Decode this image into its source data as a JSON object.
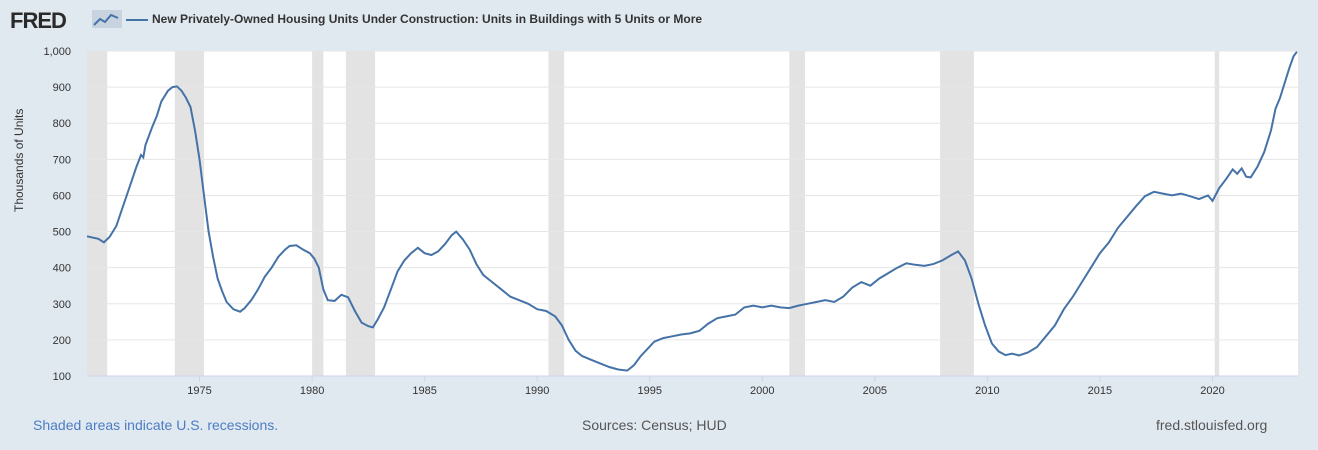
{
  "header": {
    "logo_text": "FRED",
    "title": "New Privately-Owned Housing Units Under Construction: Units in Buildings with 5 Units or More"
  },
  "footer": {
    "recession_note": "Shaded areas indicate U.S. recessions.",
    "sources": "Sources: Census; HUD",
    "site": "fred.stlouisfed.org"
  },
  "colors": {
    "line": "#4572a7",
    "recession": "#e3e3e3",
    "grid": "#e6e6e6",
    "background": "#e1e9f0"
  },
  "chart_data": {
    "type": "line",
    "ylabel": "Thousands of Units",
    "xlim": [
      1970.0,
      2023.8
    ],
    "ylim": [
      100,
      1000
    ],
    "x_ticks": [
      1975,
      1980,
      1985,
      1990,
      1995,
      2000,
      2005,
      2010,
      2015,
      2020
    ],
    "x_tick_labels": [
      "1975",
      "1980",
      "1985",
      "1990",
      "1995",
      "2000",
      "2005",
      "2010",
      "2015",
      "2020"
    ],
    "y_ticks": [
      100,
      200,
      300,
      400,
      500,
      600,
      700,
      800,
      900,
      1000
    ],
    "y_tick_labels": [
      "100",
      "200",
      "300",
      "400",
      "500",
      "600",
      "700",
      "800",
      "900",
      "1,000"
    ],
    "grid": true,
    "recessions": [
      [
        1970.0,
        1970.9
      ],
      [
        1973.9,
        1975.2
      ],
      [
        1980.0,
        1980.5
      ],
      [
        1981.5,
        1982.8
      ],
      [
        1990.5,
        1991.2
      ],
      [
        2001.2,
        2001.9
      ],
      [
        2007.9,
        2009.4
      ],
      [
        2020.1,
        2020.3
      ]
    ],
    "series": [
      {
        "points": [
          [
            1970.0,
            487
          ],
          [
            1970.5,
            480
          ],
          [
            1970.75,
            470
          ],
          [
            1971.0,
            485
          ],
          [
            1971.3,
            515
          ],
          [
            1971.6,
            570
          ],
          [
            1971.9,
            625
          ],
          [
            1972.2,
            680
          ],
          [
            1972.4,
            712
          ],
          [
            1972.5,
            705
          ],
          [
            1972.6,
            740
          ],
          [
            1972.9,
            790
          ],
          [
            1973.1,
            820
          ],
          [
            1973.3,
            860
          ],
          [
            1973.6,
            890
          ],
          [
            1973.8,
            900
          ],
          [
            1974.0,
            902
          ],
          [
            1974.2,
            890
          ],
          [
            1974.4,
            870
          ],
          [
            1974.6,
            845
          ],
          [
            1974.8,
            780
          ],
          [
            1975.0,
            700
          ],
          [
            1975.2,
            600
          ],
          [
            1975.4,
            500
          ],
          [
            1975.6,
            430
          ],
          [
            1975.8,
            370
          ],
          [
            1976.0,
            335
          ],
          [
            1976.2,
            305
          ],
          [
            1976.5,
            285
          ],
          [
            1976.8,
            278
          ],
          [
            1977.0,
            288
          ],
          [
            1977.3,
            310
          ],
          [
            1977.6,
            340
          ],
          [
            1977.9,
            375
          ],
          [
            1978.2,
            400
          ],
          [
            1978.5,
            430
          ],
          [
            1978.8,
            450
          ],
          [
            1979.0,
            460
          ],
          [
            1979.3,
            462
          ],
          [
            1979.6,
            450
          ],
          [
            1979.9,
            440
          ],
          [
            1980.1,
            425
          ],
          [
            1980.3,
            400
          ],
          [
            1980.5,
            340
          ],
          [
            1980.7,
            310
          ],
          [
            1981.0,
            308
          ],
          [
            1981.3,
            325
          ],
          [
            1981.6,
            318
          ],
          [
            1981.9,
            280
          ],
          [
            1982.2,
            248
          ],
          [
            1982.5,
            238
          ],
          [
            1982.7,
            235
          ],
          [
            1982.9,
            255
          ],
          [
            1983.2,
            290
          ],
          [
            1983.5,
            340
          ],
          [
            1983.8,
            390
          ],
          [
            1984.1,
            420
          ],
          [
            1984.4,
            440
          ],
          [
            1984.7,
            455
          ],
          [
            1985.0,
            440
          ],
          [
            1985.3,
            435
          ],
          [
            1985.6,
            445
          ],
          [
            1985.9,
            465
          ],
          [
            1986.2,
            490
          ],
          [
            1986.4,
            500
          ],
          [
            1986.7,
            478
          ],
          [
            1987.0,
            450
          ],
          [
            1987.3,
            410
          ],
          [
            1987.6,
            380
          ],
          [
            1988.0,
            360
          ],
          [
            1988.4,
            340
          ],
          [
            1988.8,
            320
          ],
          [
            1989.2,
            310
          ],
          [
            1989.6,
            300
          ],
          [
            1990.0,
            285
          ],
          [
            1990.4,
            280
          ],
          [
            1990.8,
            265
          ],
          [
            1991.1,
            240
          ],
          [
            1991.4,
            200
          ],
          [
            1991.7,
            170
          ],
          [
            1992.0,
            155
          ],
          [
            1992.4,
            145
          ],
          [
            1992.8,
            135
          ],
          [
            1993.2,
            125
          ],
          [
            1993.6,
            118
          ],
          [
            1994.0,
            115
          ],
          [
            1994.3,
            130
          ],
          [
            1994.6,
            155
          ],
          [
            1994.9,
            175
          ],
          [
            1995.2,
            195
          ],
          [
            1995.6,
            205
          ],
          [
            1996.0,
            210
          ],
          [
            1996.4,
            215
          ],
          [
            1996.8,
            218
          ],
          [
            1997.2,
            225
          ],
          [
            1997.6,
            245
          ],
          [
            1998.0,
            260
          ],
          [
            1998.4,
            265
          ],
          [
            1998.8,
            270
          ],
          [
            1999.2,
            290
          ],
          [
            1999.6,
            295
          ],
          [
            2000.0,
            290
          ],
          [
            2000.4,
            295
          ],
          [
            2000.8,
            290
          ],
          [
            2001.2,
            288
          ],
          [
            2001.6,
            295
          ],
          [
            2002.0,
            300
          ],
          [
            2002.4,
            305
          ],
          [
            2002.8,
            310
          ],
          [
            2003.2,
            305
          ],
          [
            2003.6,
            320
          ],
          [
            2004.0,
            345
          ],
          [
            2004.4,
            360
          ],
          [
            2004.8,
            350
          ],
          [
            2005.2,
            370
          ],
          [
            2005.6,
            385
          ],
          [
            2006.0,
            400
          ],
          [
            2006.4,
            412
          ],
          [
            2006.8,
            408
          ],
          [
            2007.2,
            405
          ],
          [
            2007.6,
            410
          ],
          [
            2008.0,
            420
          ],
          [
            2008.4,
            435
          ],
          [
            2008.7,
            445
          ],
          [
            2009.0,
            420
          ],
          [
            2009.3,
            370
          ],
          [
            2009.6,
            300
          ],
          [
            2009.9,
            240
          ],
          [
            2010.2,
            190
          ],
          [
            2010.5,
            168
          ],
          [
            2010.8,
            158
          ],
          [
            2011.1,
            162
          ],
          [
            2011.4,
            157
          ],
          [
            2011.8,
            165
          ],
          [
            2012.2,
            180
          ],
          [
            2012.6,
            210
          ],
          [
            2013.0,
            240
          ],
          [
            2013.4,
            285
          ],
          [
            2013.8,
            320
          ],
          [
            2014.2,
            360
          ],
          [
            2014.6,
            400
          ],
          [
            2015.0,
            440
          ],
          [
            2015.4,
            470
          ],
          [
            2015.8,
            510
          ],
          [
            2016.2,
            540
          ],
          [
            2016.6,
            570
          ],
          [
            2017.0,
            598
          ],
          [
            2017.4,
            610
          ],
          [
            2017.8,
            605
          ],
          [
            2018.2,
            600
          ],
          [
            2018.6,
            605
          ],
          [
            2019.0,
            598
          ],
          [
            2019.4,
            590
          ],
          [
            2019.8,
            600
          ],
          [
            2020.0,
            585
          ],
          [
            2020.3,
            620
          ],
          [
            2020.6,
            645
          ],
          [
            2020.9,
            672
          ],
          [
            2021.1,
            660
          ],
          [
            2021.3,
            675
          ],
          [
            2021.5,
            652
          ],
          [
            2021.7,
            650
          ],
          [
            2022.0,
            680
          ],
          [
            2022.3,
            720
          ],
          [
            2022.6,
            780
          ],
          [
            2022.8,
            840
          ],
          [
            2023.0,
            870
          ],
          [
            2023.2,
            910
          ],
          [
            2023.4,
            950
          ],
          [
            2023.6,
            985
          ],
          [
            2023.75,
            998
          ]
        ]
      }
    ]
  }
}
